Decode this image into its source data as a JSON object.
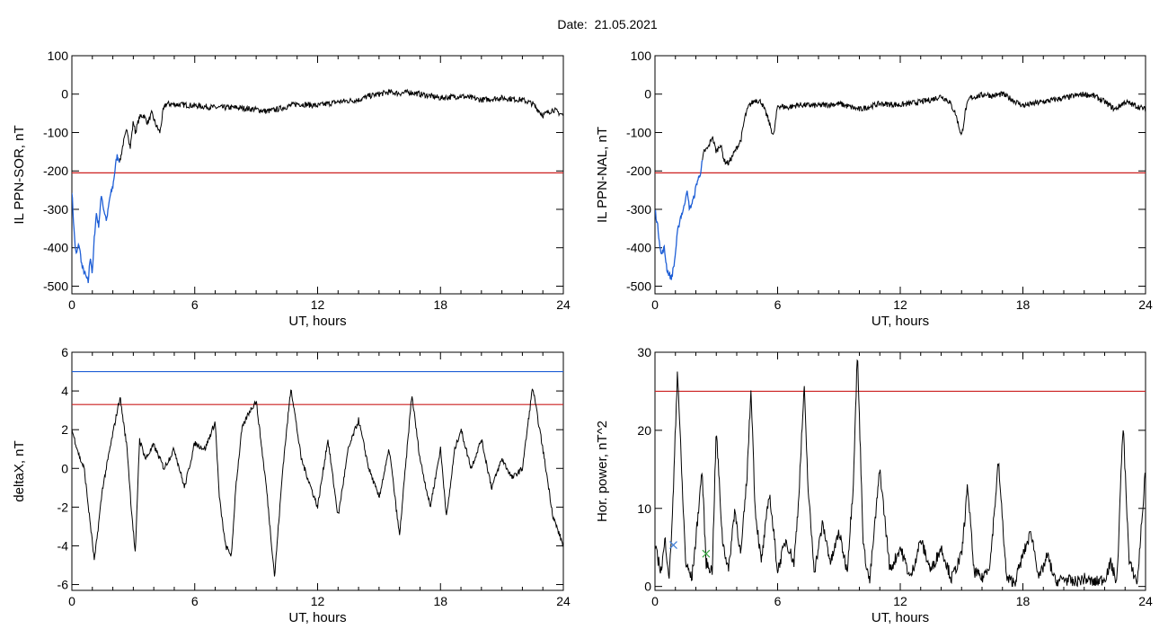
{
  "title": "Date:  21.05.2021",
  "colors": {
    "trace": "#000000",
    "highlight": "#1f5fd6",
    "threshold_red": "#cc1f1f",
    "threshold_blue": "#1f5fd6",
    "marker_blue": "#3a7bd5",
    "marker_green": "#3aa845"
  },
  "chart_data": [
    {
      "type": "line",
      "ylabel": "IL PPN-SOR, nT",
      "xlabel": "UT, hours",
      "xlim": [
        0,
        24
      ],
      "ylim": [
        -520,
        100
      ],
      "xticks": [
        "0",
        "6",
        "12",
        "18",
        "24"
      ],
      "yticks": [
        "100",
        "0",
        "-100",
        "-200",
        "-300",
        "-400",
        "-500"
      ],
      "threshold_red": -205,
      "highlight_until": 2.3,
      "series": [
        {
          "x": [
            0,
            0.1,
            0.2,
            0.35,
            0.5,
            0.65,
            0.8,
            0.9,
            1.0,
            1.1,
            1.2,
            1.3,
            1.45,
            1.55,
            1.7,
            1.85,
            2.0,
            2.1,
            2.2,
            2.35,
            2.5,
            2.7,
            2.85,
            3.0,
            3.1,
            3.3,
            3.5,
            3.7,
            3.9,
            4.1,
            4.3,
            4.45,
            4.6,
            5.0,
            5.5,
            6.0,
            7.0,
            8.0,
            9.0,
            9.5,
            10.0,
            11.0,
            12.0,
            13.0,
            14.0,
            14.5,
            15.0,
            15.5,
            16.0,
            16.5,
            17.0,
            18.0,
            19.0,
            20.0,
            21.0,
            22.0,
            22.5,
            23.0,
            23.5,
            24.0
          ],
          "values": [
            -250,
            -350,
            -420,
            -390,
            -450,
            -470,
            -490,
            -420,
            -470,
            -370,
            -310,
            -345,
            -260,
            -300,
            -330,
            -270,
            -240,
            -200,
            -160,
            -175,
            -130,
            -90,
            -140,
            -70,
            -100,
            -60,
            -55,
            -75,
            -50,
            -80,
            -100,
            -45,
            -25,
            -27,
            -28,
            -30,
            -35,
            -35,
            -40,
            -45,
            -40,
            -25,
            -30,
            -20,
            -15,
            -5,
            0,
            5,
            2,
            5,
            0,
            -10,
            -5,
            -15,
            -10,
            -15,
            -25,
            -55,
            -40,
            -55
          ]
        }
      ]
    },
    {
      "type": "line",
      "ylabel": "IL PPN-NAL, nT",
      "xlabel": "UT, hours",
      "xlim": [
        0,
        24
      ],
      "ylim": [
        -520,
        100
      ],
      "xticks": [
        "0",
        "6",
        "12",
        "18",
        "24"
      ],
      "yticks": [
        "100",
        "0",
        "-100",
        "-200",
        "-300",
        "-400",
        "-500"
      ],
      "threshold_red": -205,
      "highlight_until": 2.3,
      "series": [
        {
          "x": [
            0,
            0.15,
            0.3,
            0.45,
            0.6,
            0.8,
            0.95,
            1.1,
            1.25,
            1.4,
            1.55,
            1.7,
            1.9,
            2.05,
            2.2,
            2.4,
            2.6,
            2.8,
            3.0,
            3.2,
            3.4,
            3.6,
            3.8,
            4.0,
            4.2,
            4.4,
            4.6,
            4.9,
            5.2,
            5.5,
            5.8,
            6.0,
            6.5,
            7.0,
            8.0,
            9.0,
            10.0,
            11.0,
            12.0,
            13.0,
            13.5,
            14.0,
            14.4,
            14.7,
            15.0,
            15.2,
            15.4,
            15.8,
            16.2,
            16.5,
            17.0,
            18.0,
            19.0,
            20.0,
            21.0,
            21.5,
            22.0,
            22.5,
            23.0,
            23.5,
            24.0
          ],
          "values": [
            -300,
            -350,
            -420,
            -400,
            -460,
            -480,
            -440,
            -360,
            -320,
            -300,
            -250,
            -300,
            -270,
            -230,
            -210,
            -150,
            -140,
            -110,
            -150,
            -130,
            -175,
            -180,
            -160,
            -140,
            -120,
            -60,
            -30,
            -15,
            -20,
            -60,
            -110,
            -30,
            -35,
            -28,
            -30,
            -25,
            -40,
            -25,
            -28,
            -20,
            -15,
            -5,
            -20,
            -50,
            -110,
            -40,
            -10,
            -5,
            0,
            -5,
            0,
            -30,
            -20,
            -10,
            0,
            -5,
            -20,
            -40,
            -20,
            -30,
            -40
          ]
        }
      ]
    },
    {
      "type": "line",
      "ylabel": "deltaX, nT",
      "xlabel": "UT, hours",
      "xlim": [
        0,
        24
      ],
      "ylim": [
        -6.3,
        6
      ],
      "xticks": [
        "0",
        "6",
        "12",
        "18",
        "24"
      ],
      "yticks": [
        "6",
        "4",
        "2",
        "0",
        "-2",
        "-4",
        "-6"
      ],
      "threshold_blue": 5.0,
      "threshold_red": 3.3,
      "series": [
        {
          "x": [
            0,
            0.4,
            0.6,
            1.1,
            1.5,
            2.0,
            2.35,
            2.7,
            2.9,
            3.1,
            3.3,
            3.6,
            4.0,
            4.5,
            5.0,
            5.5,
            6.0,
            6.5,
            7.0,
            7.2,
            7.5,
            7.8,
            8.0,
            8.3,
            8.6,
            9.0,
            9.5,
            9.9,
            10.3,
            10.7,
            11.2,
            12.0,
            12.5,
            13.0,
            13.5,
            14.0,
            14.5,
            15.0,
            15.5,
            16.0,
            16.6,
            17.0,
            17.5,
            18.0,
            18.3,
            18.7,
            19.0,
            19.5,
            20.0,
            20.5,
            21.0,
            21.5,
            22.0,
            22.5,
            23.0,
            23.5,
            24.0
          ],
          "values": [
            2.0,
            0.5,
            0.0,
            -4.8,
            -1.0,
            1.8,
            3.7,
            1.0,
            -2.0,
            -4.5,
            1.5,
            0.5,
            1.2,
            0.0,
            1.0,
            -1.0,
            1.3,
            1.0,
            2.4,
            -1.5,
            -4.0,
            -4.5,
            -1.0,
            2.0,
            2.8,
            3.5,
            -1.0,
            -5.6,
            0.0,
            4.2,
            0.5,
            -2.0,
            1.5,
            -2.5,
            1.0,
            2.5,
            0.0,
            -1.5,
            1.0,
            -3.5,
            3.8,
            0.5,
            -2.0,
            1.0,
            -2.5,
            1.0,
            2.0,
            0.0,
            1.5,
            -1.0,
            0.5,
            -0.5,
            0.0,
            4.2,
            1.0,
            -2.5,
            -4.0
          ]
        }
      ]
    },
    {
      "type": "line",
      "ylabel": "Hor. power, nT^2",
      "xlabel": "UT, hours",
      "xlim": [
        0,
        24
      ],
      "ylim": [
        -0.5,
        30
      ],
      "xticks": [
        "0",
        "6",
        "12",
        "18",
        "24"
      ],
      "yticks": [
        "30",
        "20",
        "10",
        "0"
      ],
      "threshold_red": 25,
      "markers": [
        {
          "x": 0.9,
          "y": 5.3,
          "color": "marker_blue"
        },
        {
          "x": 2.5,
          "y": 4.2,
          "color": "marker_green"
        }
      ],
      "series": [
        {
          "x": [
            0,
            0.3,
            0.5,
            0.7,
            0.9,
            1.1,
            1.3,
            1.5,
            1.8,
            2.0,
            2.3,
            2.5,
            2.8,
            3.0,
            3.3,
            3.6,
            3.9,
            4.2,
            4.5,
            4.7,
            4.9,
            5.2,
            5.6,
            6.0,
            6.4,
            6.8,
            7.0,
            7.3,
            7.5,
            7.8,
            8.2,
            8.6,
            9.0,
            9.4,
            9.7,
            9.9,
            10.2,
            10.5,
            11.0,
            11.5,
            12.0,
            12.5,
            13.0,
            13.5,
            14.0,
            14.5,
            15.0,
            15.3,
            15.6,
            16.0,
            16.4,
            16.8,
            17.2,
            17.6,
            18.0,
            18.4,
            18.8,
            19.2,
            19.6,
            20.0,
            20.5,
            21.0,
            21.5,
            22.0,
            22.3,
            22.6,
            22.9,
            23.2,
            23.6,
            24.0
          ],
          "values": [
            5.0,
            2.0,
            6.0,
            1.0,
            12.0,
            28.0,
            15.0,
            3.0,
            1.0,
            6.0,
            15.0,
            3.0,
            2.0,
            20.0,
            6.0,
            2.0,
            10.0,
            4.0,
            14.0,
            25.5,
            10.0,
            3.0,
            12.0,
            2.0,
            6.0,
            3.0,
            10.0,
            25.5,
            12.0,
            2.0,
            8.0,
            3.0,
            7.0,
            2.0,
            13.0,
            30.0,
            5.0,
            0.5,
            15.0,
            2.0,
            5.0,
            1.0,
            6.0,
            2.0,
            5.0,
            1.0,
            4.0,
            13.0,
            2.0,
            1.0,
            3.0,
            16.0,
            1.0,
            0.5,
            4.0,
            7.0,
            1.0,
            4.0,
            0.5,
            1.0,
            0.5,
            1.0,
            0.5,
            1.0,
            3.0,
            0.5,
            21.0,
            3.0,
            0.5,
            15.0
          ]
        }
      ]
    }
  ]
}
